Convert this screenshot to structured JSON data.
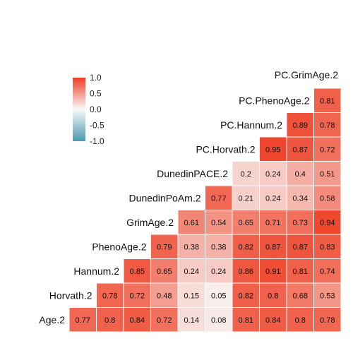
{
  "chart_data": {
    "type": "heatmap",
    "layout": "lower-triangular correlation matrix, diagonal labels",
    "variables": [
      "Age.2",
      "Horvath.2",
      "Hannum.2",
      "PhenoAge.2",
      "GrimAge.2",
      "DunedinPoAm.2",
      "DunedinPACE.2",
      "PC.Horvath.2",
      "PC.Hannum.2",
      "PC.PhenoAge.2",
      "PC.GrimAge.2"
    ],
    "matrix": [
      [
        0.77,
        0.8,
        0.84,
        0.72,
        0.14,
        0.08,
        0.81,
        0.84,
        0.8,
        0.78
      ],
      [
        0.78,
        0.72,
        0.48,
        0.15,
        0.05,
        0.82,
        0.8,
        0.68,
        0.53
      ],
      [
        0.85,
        0.65,
        0.24,
        0.24,
        0.86,
        0.91,
        0.81,
        0.74
      ],
      [
        0.79,
        0.38,
        0.38,
        0.82,
        0.87,
        0.87,
        0.83
      ],
      [
        0.61,
        0.54,
        0.65,
        0.71,
        0.73,
        0.94
      ],
      [
        0.77,
        0.21,
        0.24,
        0.34,
        0.58
      ],
      [
        0.2,
        0.24,
        0.4,
        0.51
      ],
      [
        0.95,
        0.87,
        0.72
      ],
      [
        0.89,
        0.78
      ],
      [
        0.81
      ]
    ],
    "color_scale": {
      "low": "#4a9bb0",
      "mid": "#f8f8f8",
      "high": "#ee3d22",
      "range": [
        -1,
        1
      ]
    },
    "legend": {
      "placement": "upper-left",
      "ticks": [
        "1.0",
        "0.5",
        "0.0",
        "-0.5",
        "-1.0"
      ]
    },
    "grid": true
  }
}
